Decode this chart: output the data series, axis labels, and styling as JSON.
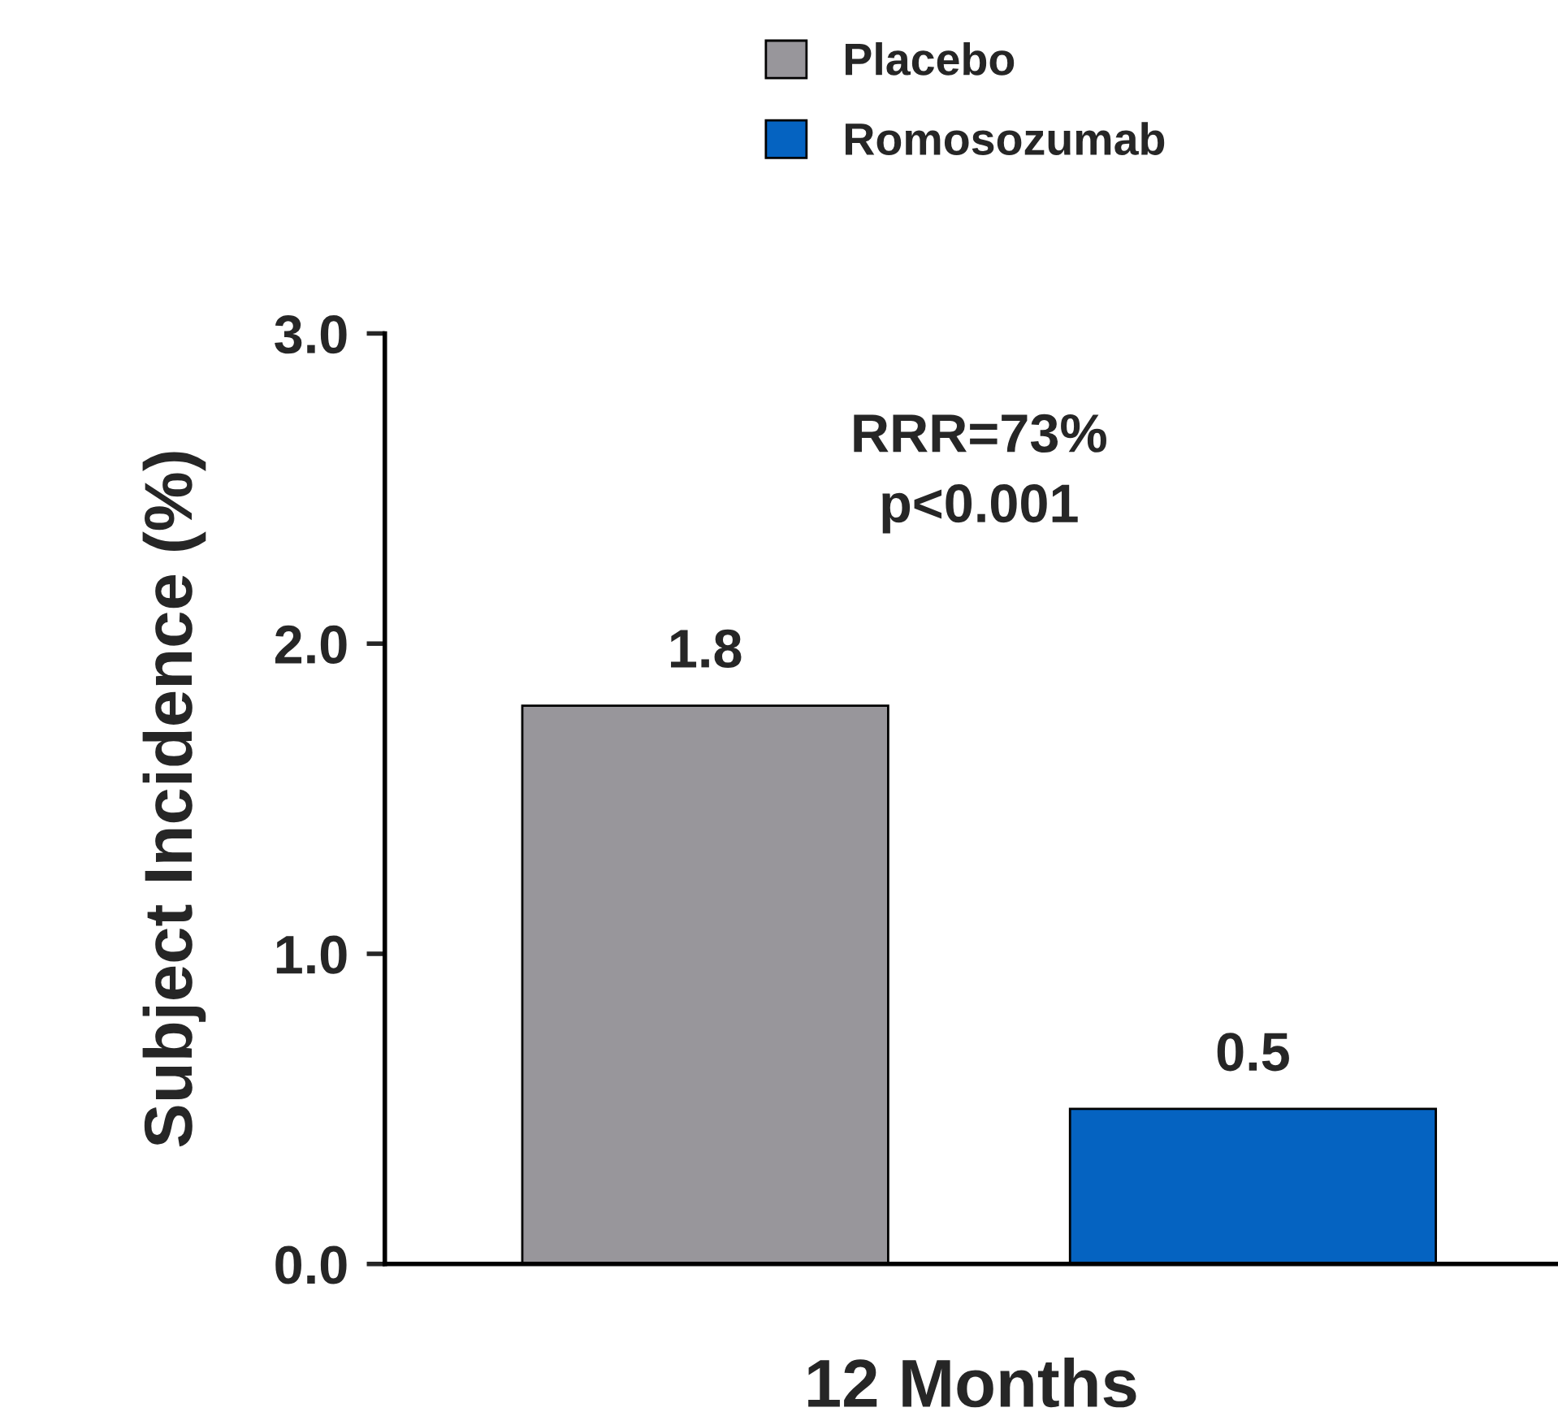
{
  "chart_data": {
    "type": "bar",
    "ylabel": "Subject Incidence (%)",
    "xlabel": "12 Months",
    "categories": [
      null,
      null
    ],
    "series": [
      {
        "name": "Placebo",
        "color": "#98969b",
        "values": [
          1.8,
          null
        ]
      },
      {
        "name": "Romosozumab",
        "color": "#0563c1",
        "values": [
          null,
          0.5
        ]
      }
    ],
    "ylim": [
      0,
      3
    ],
    "yticks": [
      {
        "value": 0,
        "label": "0.0"
      },
      {
        "value": 1,
        "label": "1.0"
      },
      {
        "value": 2,
        "label": "2.0"
      },
      {
        "value": 3,
        "label": "3.0"
      }
    ],
    "data_labels": true,
    "annotations": [
      "RRR=73%\np<0.001"
    ],
    "legend": "top",
    "grid": false
  }
}
